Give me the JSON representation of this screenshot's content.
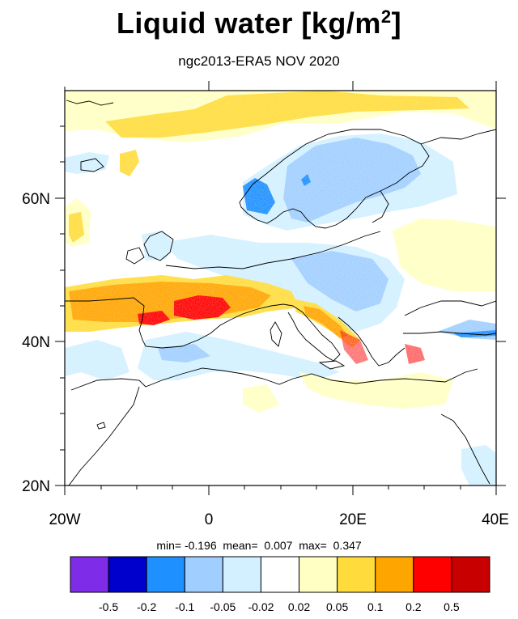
{
  "title": "Liquid water  [kg/m",
  "title_sup": "2",
  "title_close": "]",
  "subtitle": "ngc2013-ERA5 NOV 2020",
  "stats": {
    "min_label": "min=",
    "min": "-0.196",
    "mean_label": "mean=",
    "mean": "0.007",
    "max_label": "max=",
    "max": "0.347"
  },
  "map": {
    "lon_range": [
      -20,
      40
    ],
    "lat_range": [
      20,
      75
    ],
    "x_ticks": [
      {
        "lon": -20,
        "label": "20W"
      },
      {
        "lon": 0,
        "label": "0"
      },
      {
        "lon": 20,
        "label": "20E"
      },
      {
        "lon": 40,
        "label": "40E"
      }
    ],
    "y_ticks": [
      {
        "lat": 20,
        "label": "20N"
      },
      {
        "lat": 40,
        "label": "40N"
      },
      {
        "lat": 60,
        "label": "60N"
      }
    ]
  },
  "colorbar": {
    "colors": [
      "#7f2ce8",
      "#0000cc",
      "#1e90ff",
      "#a0ceff",
      "#d2f0ff",
      "#ffffff",
      "#ffffc3",
      "#ffdc3c",
      "#ffa500",
      "#ff0000",
      "#c80000"
    ],
    "labels": [
      "-0.5",
      "-0.2",
      "-0.1",
      "-0.05",
      "-0.02",
      "0.02",
      "0.05",
      "0.1",
      "0.2",
      "0.5"
    ]
  }
}
